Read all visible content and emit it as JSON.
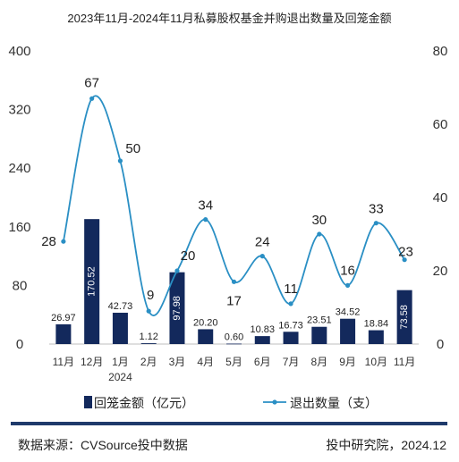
{
  "chart_data": {
    "type": "bar+line",
    "title": "2023年11月-2024年11月私募股权基金并购退出数量及回笼金额",
    "categories": [
      "11月",
      "12月",
      "1月",
      "2月",
      "3月",
      "4月",
      "5月",
      "6月",
      "7月",
      "8月",
      "9月",
      "10月",
      "11月"
    ],
    "year_label": "2024",
    "series": [
      {
        "name": "回笼金额（亿元）",
        "type": "bar",
        "axis": "left",
        "values": [
          26.97,
          170.52,
          42.73,
          1.12,
          97.98,
          20.2,
          0.6,
          10.83,
          16.73,
          23.51,
          34.52,
          18.84,
          73.58
        ],
        "labels": [
          "26.97",
          "170.52",
          "42.73",
          "1.12",
          "97.98",
          "20.20",
          "0.60",
          "10.83",
          "16.73",
          "23.51",
          "34.52",
          "18.84",
          "73.58"
        ],
        "label_rotated": [
          false,
          true,
          false,
          false,
          true,
          false,
          false,
          false,
          false,
          false,
          false,
          false,
          true
        ]
      },
      {
        "name": "退出数量（支）",
        "type": "line",
        "axis": "right",
        "values": [
          28,
          67,
          50,
          9,
          20,
          34,
          17,
          24,
          11,
          30,
          16,
          33,
          23
        ]
      }
    ],
    "y_left": {
      "ticks": [
        "0",
        "80",
        "160",
        "240",
        "320",
        "400"
      ],
      "range": [
        0,
        400
      ]
    },
    "y_right": {
      "ticks": [
        "0",
        "20",
        "40",
        "60",
        "80"
      ],
      "range": [
        0,
        80
      ]
    },
    "grid": false,
    "legend_position": "bottom",
    "colors": {
      "bar": "#13295c",
      "line": "#2a8fc4",
      "rule": "#1f3a6b"
    }
  },
  "footer": {
    "source": "数据来源：CVSource投中数据",
    "credit": "投中研究院，2024.12"
  }
}
